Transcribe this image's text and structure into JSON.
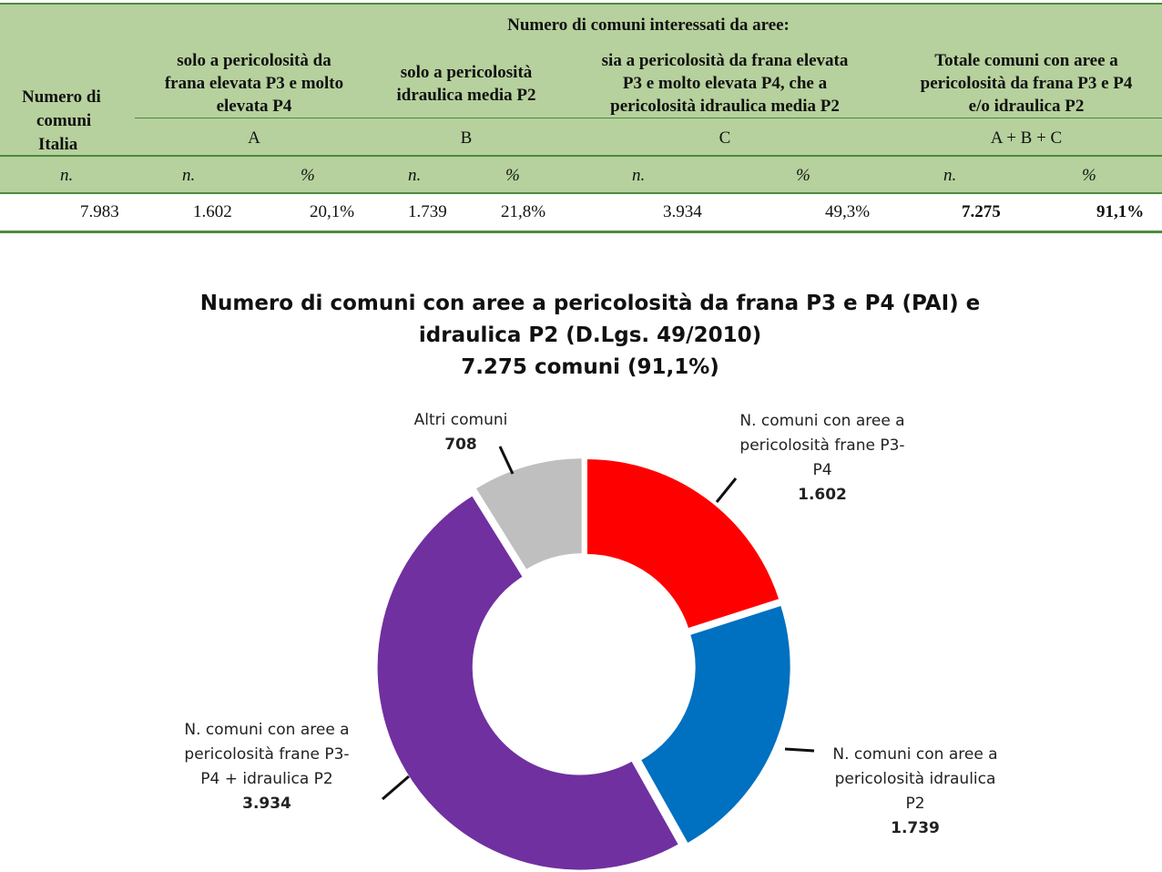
{
  "table": {
    "header_top": "Numero di comuni    interessati da aree:",
    "col0_header": [
      "Numero di",
      "comuni",
      "Italia"
    ],
    "group_headers": [
      {
        "lines": [
          "solo a pericolosità da",
          "frana elevata P3 e molto",
          "elevata P4"
        ],
        "letter": "A"
      },
      {
        "lines": [
          "solo a pericolosità",
          "idraulica media P2"
        ],
        "letter": "B"
      },
      {
        "lines": [
          "sia a pericolosità da frana elevata",
          "P3 e molto elevata P4, che a",
          "pericolosità idraulica media P2"
        ],
        "letter": "C"
      },
      {
        "lines": [
          "Totale comuni con aree a",
          "pericolosità da frana P3 e P4",
          "e/o idraulica P2"
        ],
        "letter": "A + B + C"
      }
    ],
    "unit_n": "n.",
    "unit_pct": "%",
    "row": {
      "italia": "7.983",
      "a_n": "1.602",
      "a_pct": "20,1%",
      "b_n": "1.739",
      "b_pct": "21,8%",
      "c_n": "3.934",
      "c_pct": "49,3%",
      "tot_n": "7.275",
      "tot_pct": "91,1%"
    }
  },
  "chart_data": {
    "type": "pie",
    "variant": "donut",
    "title": [
      "Numero di comuni con aree a pericolosità da frana P3 e P4 (PAI) e",
      "idraulica P2 (D.Lgs. 49/2010)",
      "7.275 comuni (91,1%)"
    ],
    "slices": [
      {
        "label": [
          "N. comuni con aree a",
          "pericolosità frane P3-",
          "P4"
        ],
        "value": 1602,
        "value_label": "1.602",
        "color": "#ff0000"
      },
      {
        "label": [
          "N. comuni con aree a",
          "pericolosità idraulica",
          "P2"
        ],
        "value": 1739,
        "value_label": "1.739",
        "color": "#0070c0"
      },
      {
        "label": [
          "N. comuni con aree a",
          "pericolosità frane P3-",
          "P4 + idraulica P2"
        ],
        "value": 3934,
        "value_label": "3.934",
        "color": "#7030a0"
      },
      {
        "label": [
          "Altri comuni"
        ],
        "value": 708,
        "value_label": "708",
        "color": "#bfbfbf"
      }
    ],
    "legend": "none"
  },
  "colors": {
    "header_bg": "#b6d19d",
    "rule": "#4e8a3e"
  }
}
